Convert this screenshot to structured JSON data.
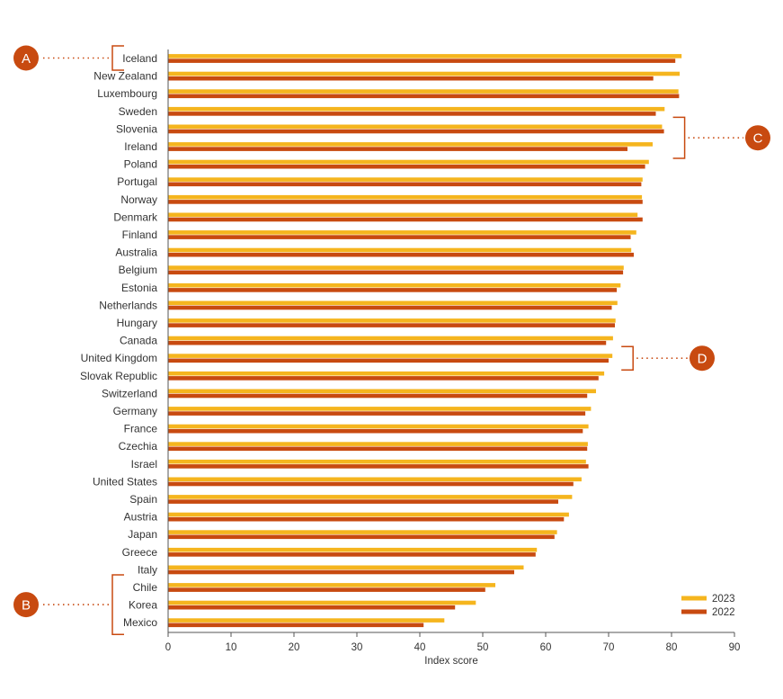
{
  "chart_data": {
    "type": "bar",
    "orientation": "horizontal",
    "xlabel": "Index score",
    "xlim": [
      0,
      90
    ],
    "xticks": [
      0,
      10,
      20,
      30,
      40,
      50,
      60,
      70,
      80,
      90
    ],
    "grid": false,
    "legend_position": "bottom-right",
    "categories": [
      "Iceland",
      "New Zealand",
      "Luxembourg",
      "Sweden",
      "Slovenia",
      "Ireland",
      "Poland",
      "Portugal",
      "Norway",
      "Denmark",
      "Finland",
      "Australia",
      "Belgium",
      "Estonia",
      "Netherlands",
      "Hungary",
      "Canada",
      "United Kingdom",
      "Slovak Republic",
      "Switzerland",
      "Germany",
      "France",
      "Czechia",
      "Israel",
      "United States",
      "Spain",
      "Austria",
      "Japan",
      "Greece",
      "Italy",
      "Chile",
      "Korea",
      "Mexico"
    ],
    "series": [
      {
        "name": "2023",
        "color": "#f5b51e",
        "values": [
          81.6,
          81.3,
          81.1,
          78.9,
          78.5,
          77.0,
          76.4,
          75.4,
          75.3,
          74.6,
          74.4,
          73.6,
          72.4,
          71.9,
          71.4,
          71.1,
          70.7,
          70.6,
          69.3,
          68.0,
          67.2,
          66.8,
          66.7,
          66.4,
          65.7,
          64.2,
          63.7,
          61.8,
          58.6,
          56.5,
          52.0,
          48.9,
          43.9
        ]
      },
      {
        "name": "2022",
        "color": "#c84a10",
        "values": [
          80.6,
          77.1,
          81.2,
          77.5,
          78.8,
          73.0,
          75.8,
          75.2,
          75.4,
          75.4,
          73.5,
          74.0,
          72.3,
          71.3,
          70.5,
          71.0,
          69.6,
          70.0,
          68.4,
          66.6,
          66.3,
          65.9,
          66.6,
          66.8,
          64.4,
          62.0,
          62.9,
          61.4,
          58.4,
          55.0,
          50.4,
          45.6,
          40.6
        ]
      }
    ],
    "annotations": [
      {
        "label": "A",
        "from": "Iceland",
        "to": "Iceland"
      },
      {
        "label": "B",
        "from": "Chile",
        "to": "Mexico"
      },
      {
        "label": "C",
        "from": "Slovenia",
        "to": "Ireland"
      },
      {
        "label": "D",
        "from": "United Kingdom",
        "to": "United Kingdom"
      }
    ],
    "annotation_color": "#c84a10"
  }
}
